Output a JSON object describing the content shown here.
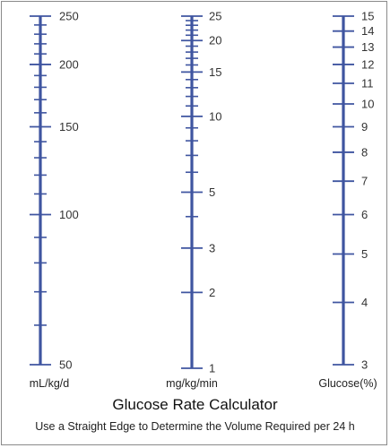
{
  "title": "Glucose Rate Calculator",
  "subtitle": "Use a Straight Edge to Determine the Volume Required per 24 h",
  "colors": {
    "scale": "#3f55a0",
    "text": "#333333",
    "border": "#8a8a8a"
  },
  "chart_data": {
    "type": "nomogram",
    "scales": [
      {
        "name": "mL/kg/d",
        "range": [
          50,
          250
        ],
        "scale_type": "log",
        "labeled_ticks": [
          50,
          100,
          150,
          200,
          250
        ],
        "tick_labels": [
          "50",
          "100",
          "150",
          "200",
          "250"
        ],
        "minor_ticks": [
          60,
          70,
          80,
          90,
          110,
          120,
          130,
          140,
          160,
          170,
          180,
          190,
          210,
          220,
          230,
          240
        ]
      },
      {
        "name": "mg/kg/min",
        "range": [
          1,
          25
        ],
        "scale_type": "log",
        "labeled_ticks": [
          1,
          2,
          3,
          5,
          10,
          15,
          20,
          25
        ],
        "tick_labels": [
          "1",
          "2",
          "3",
          "5",
          "10",
          "15",
          "20",
          "25"
        ],
        "minor_ticks": [
          4,
          6,
          7,
          8,
          9,
          11,
          12,
          13,
          14,
          16,
          17,
          18,
          19,
          21,
          22,
          23,
          24
        ]
      },
      {
        "name": "Glucose(%)",
        "range": [
          3,
          15
        ],
        "scale_type": "log",
        "labeled_ticks": [
          3,
          4,
          5,
          6,
          7,
          8,
          9,
          10,
          11,
          12,
          13,
          14,
          15
        ],
        "tick_labels": [
          "3",
          "4",
          "5",
          "6",
          "7",
          "8",
          "9",
          "10",
          "11",
          "12",
          "13",
          "14",
          "15"
        ],
        "minor_ticks": []
      }
    ]
  }
}
